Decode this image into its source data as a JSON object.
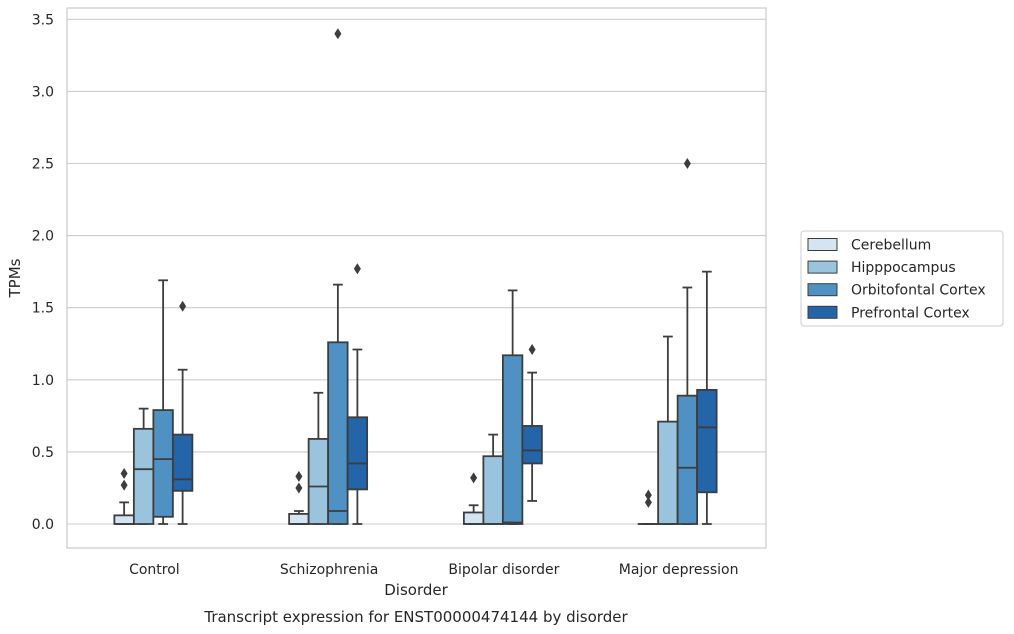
{
  "chart_data": {
    "type": "box",
    "title": "",
    "caption": "Transcript expression for ENST00000474144 by disorder",
    "xlabel": "Disorder",
    "ylabel": "TPMs",
    "ylim": [
      -0.17,
      3.58
    ],
    "yticks": [
      "0.0",
      "0.5",
      "1.0",
      "1.5",
      "2.0",
      "2.5",
      "3.0",
      "3.5"
    ],
    "grid": "horizontal",
    "legend_position": "right",
    "categories": [
      "Control",
      "Schizophrenia",
      "Bipolar disorder",
      "Major depression"
    ],
    "series": [
      {
        "name": "Cerebellum",
        "color": "#d3e4f3",
        "boxes": [
          {
            "category": "Control",
            "whisker_low": 0.0,
            "q1": 0.0,
            "median": 0.0,
            "q3": 0.06,
            "whisker_high": 0.15,
            "outliers": [
              0.27,
              0.35
            ]
          },
          {
            "category": "Schizophrenia",
            "whisker_low": 0.0,
            "q1": 0.0,
            "median": 0.0,
            "q3": 0.07,
            "whisker_high": 0.09,
            "outliers": [
              0.25,
              0.33
            ]
          },
          {
            "category": "Bipolar disorder",
            "whisker_low": 0.0,
            "q1": 0.0,
            "median": 0.0,
            "q3": 0.08,
            "whisker_high": 0.13,
            "outliers": [
              0.32
            ]
          },
          {
            "category": "Major depression",
            "whisker_low": 0.0,
            "q1": 0.0,
            "median": 0.0,
            "q3": 0.0,
            "whisker_high": 0.0,
            "outliers": [
              0.15,
              0.2
            ]
          }
        ]
      },
      {
        "name": "Hipppocampus",
        "color": "#9ac3de",
        "boxes": [
          {
            "category": "Control",
            "whisker_low": 0.0,
            "q1": 0.0,
            "median": 0.38,
            "q3": 0.66,
            "whisker_high": 0.8,
            "outliers": []
          },
          {
            "category": "Schizophrenia",
            "whisker_low": 0.0,
            "q1": 0.0,
            "median": 0.26,
            "q3": 0.59,
            "whisker_high": 0.91,
            "outliers": []
          },
          {
            "category": "Bipolar disorder",
            "whisker_low": 0.0,
            "q1": 0.0,
            "median": 0.0,
            "q3": 0.47,
            "whisker_high": 0.62,
            "outliers": []
          },
          {
            "category": "Major depression",
            "whisker_low": 0.0,
            "q1": 0.0,
            "median": 0.0,
            "q3": 0.71,
            "whisker_high": 1.3,
            "outliers": []
          }
        ]
      },
      {
        "name": "Orbitofontal Cortex",
        "color": "#4f91c2",
        "boxes": [
          {
            "category": "Control",
            "whisker_low": 0.0,
            "q1": 0.05,
            "median": 0.45,
            "q3": 0.79,
            "whisker_high": 1.69,
            "outliers": []
          },
          {
            "category": "Schizophrenia",
            "whisker_low": 0.0,
            "q1": 0.0,
            "median": 0.09,
            "q3": 1.26,
            "whisker_high": 1.66,
            "outliers": [
              3.4
            ]
          },
          {
            "category": "Bipolar disorder",
            "whisker_low": 0.0,
            "q1": 0.0,
            "median": 0.01,
            "q3": 1.17,
            "whisker_high": 1.62,
            "outliers": []
          },
          {
            "category": "Major depression",
            "whisker_low": 0.0,
            "q1": 0.0,
            "median": 0.39,
            "q3": 0.89,
            "whisker_high": 1.64,
            "outliers": [
              2.5
            ]
          }
        ]
      },
      {
        "name": "Prefrontal Cortex",
        "color": "#2464a8",
        "boxes": [
          {
            "category": "Control",
            "whisker_low": 0.0,
            "q1": 0.23,
            "median": 0.31,
            "q3": 0.62,
            "whisker_high": 1.07,
            "outliers": [
              1.51
            ]
          },
          {
            "category": "Schizophrenia",
            "whisker_low": 0.0,
            "q1": 0.24,
            "median": 0.42,
            "q3": 0.74,
            "whisker_high": 1.21,
            "outliers": [
              1.77
            ]
          },
          {
            "category": "Bipolar disorder",
            "whisker_low": 0.16,
            "q1": 0.42,
            "median": 0.51,
            "q3": 0.68,
            "whisker_high": 1.05,
            "outliers": [
              1.21
            ]
          },
          {
            "category": "Major depression",
            "whisker_low": 0.0,
            "q1": 0.22,
            "median": 0.67,
            "q3": 0.93,
            "whisker_high": 1.75,
            "outliers": []
          }
        ]
      }
    ]
  }
}
